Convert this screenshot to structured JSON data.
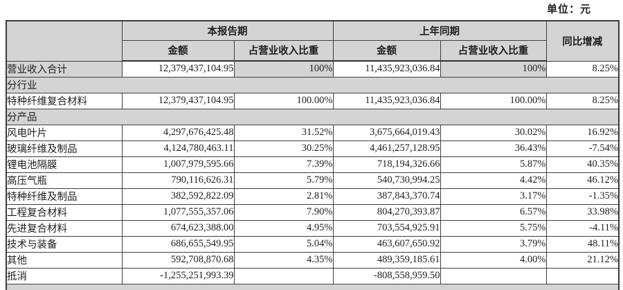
{
  "unit_label": "单位：元",
  "table": {
    "header": {
      "current_period": "本报告期",
      "prior_period": "上年同期",
      "yoy": "同比增减",
      "amount": "金额",
      "revenue_ratio": "占营业收入比重"
    },
    "rows": [
      {
        "type": "data",
        "highlight": true,
        "label": "营业收入合计",
        "current_amount": "12,379,437,104.95",
        "current_ratio": "100%",
        "prior_amount": "11,435,923,036.84",
        "prior_ratio": "100%",
        "yoy": "8.25%"
      },
      {
        "type": "section",
        "label": "分行业"
      },
      {
        "type": "data",
        "label": "特种纤维复合材料",
        "current_amount": "12,379,437,104.95",
        "current_ratio": "100.00%",
        "prior_amount": "11,435,923,036.84",
        "prior_ratio": "100.00%",
        "yoy": "8.25%"
      },
      {
        "type": "section",
        "label": "分产品"
      },
      {
        "type": "data",
        "label": "风电叶片",
        "current_amount": "4,297,676,425.48",
        "current_ratio": "31.52%",
        "prior_amount": "3,675,664,019.43",
        "prior_ratio": "30.02%",
        "yoy": "16.92%"
      },
      {
        "type": "data",
        "label": "玻璃纤维及制品",
        "current_amount": "4,124,780,463.11",
        "current_ratio": "30.25%",
        "prior_amount": "4,461,257,128.95",
        "prior_ratio": "36.43%",
        "yoy": "-7.54%"
      },
      {
        "type": "data",
        "label": "锂电池隔膜",
        "current_amount": "1,007,979,595.66",
        "current_ratio": "7.39%",
        "prior_amount": "718,194,326.66",
        "prior_ratio": "5.87%",
        "yoy": "40.35%"
      },
      {
        "type": "data",
        "label": "高压气瓶",
        "current_amount": "790,116,626.31",
        "current_ratio": "5.79%",
        "prior_amount": "540,730,994.25",
        "prior_ratio": "4.42%",
        "yoy": "46.12%"
      },
      {
        "type": "data",
        "label": "特种纤维及制品",
        "current_amount": "382,592,822.09",
        "current_ratio": "2.81%",
        "prior_amount": "387,843,370.74",
        "prior_ratio": "3.17%",
        "yoy": "-1.35%"
      },
      {
        "type": "data",
        "label": "工程复合材料",
        "current_amount": "1,077,555,357.06",
        "current_ratio": "7.90%",
        "prior_amount": "804,270,393.87",
        "prior_ratio": "6.57%",
        "yoy": "33.98%"
      },
      {
        "type": "data",
        "label": "先进复合材料",
        "current_amount": "674,623,388.00",
        "current_ratio": "4.95%",
        "prior_amount": "703,554,925.91",
        "prior_ratio": "5.75%",
        "yoy": "-4.11%"
      },
      {
        "type": "data",
        "label": "技术与装备",
        "current_amount": "686,655,549.95",
        "current_ratio": "5.04%",
        "prior_amount": "463,607,650.92",
        "prior_ratio": "3.79%",
        "yoy": "48.11%"
      },
      {
        "type": "data",
        "label": "其他",
        "current_amount": "592,708,870.68",
        "current_ratio": "4.35%",
        "prior_amount": "489,359,185.61",
        "prior_ratio": "4.00%",
        "yoy": "21.12%"
      },
      {
        "type": "data",
        "label": "抵消",
        "current_amount": "-1,255,251,993.39",
        "current_ratio": "",
        "prior_amount": "-808,558,959.50",
        "prior_ratio": "",
        "yoy": ""
      },
      {
        "type": "section",
        "label": "",
        "strip": true
      }
    ]
  }
}
